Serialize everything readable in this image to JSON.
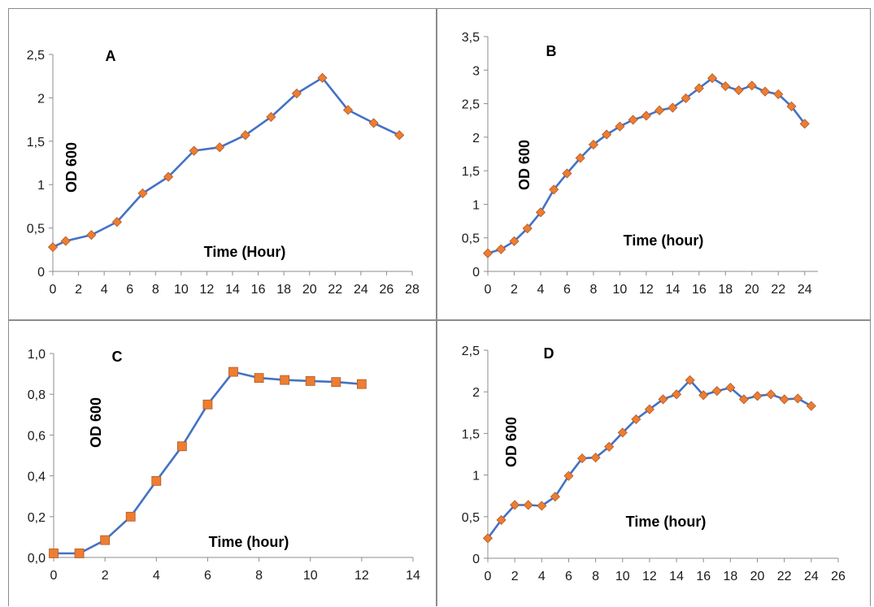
{
  "colors": {
    "series_line": "#4472c4",
    "marker": "#ed7d31",
    "axis": "#8c8c8c"
  },
  "chart_data": [
    {
      "panel": "a",
      "type": "line",
      "title": "A",
      "xlabel": "Time (Hour)",
      "ylabel": "OD 600",
      "marker": "diamond",
      "xlim": [
        0,
        28
      ],
      "ylim": [
        0,
        2.5
      ],
      "xticks": [
        0,
        2,
        4,
        6,
        8,
        10,
        12,
        14,
        16,
        18,
        20,
        22,
        24,
        26,
        28
      ],
      "xtick_labels": [
        "0",
        "2",
        "4",
        "6",
        "8",
        "10",
        "12",
        "14",
        "16",
        "18",
        "20",
        "22",
        "24",
        "26",
        "28"
      ],
      "yticks": [
        0,
        0.5,
        1,
        1.5,
        2,
        2.5
      ],
      "ytick_labels": [
        "0",
        "0,5",
        "1",
        "1,5",
        "2",
        "2,5"
      ],
      "grid": false,
      "x": [
        0,
        1,
        3,
        5,
        7,
        9,
        11,
        13,
        15,
        17,
        19,
        21,
        23,
        25,
        27
      ],
      "y": [
        0.28,
        0.35,
        0.42,
        0.57,
        0.9,
        1.09,
        1.39,
        1.43,
        1.57,
        1.78,
        2.05,
        2.23,
        1.86,
        1.71,
        1.57
      ]
    },
    {
      "panel": "b",
      "type": "line",
      "title": "B",
      "xlabel": "Time (hour)",
      "ylabel": "OD 600",
      "marker": "diamond",
      "xlim": [
        0,
        25
      ],
      "ylim": [
        0,
        3.5
      ],
      "xticks": [
        0,
        2,
        4,
        6,
        8,
        10,
        12,
        14,
        16,
        18,
        20,
        22,
        24
      ],
      "xtick_labels": [
        "0",
        "2",
        "4",
        "6",
        "8",
        "10",
        "12",
        "14",
        "16",
        "18",
        "20",
        "22",
        "24"
      ],
      "yticks": [
        0,
        0.5,
        1,
        1.5,
        2,
        2.5,
        3,
        3.5
      ],
      "ytick_labels": [
        "0",
        "0,5",
        "1",
        "1,5",
        "2",
        "2,5",
        "3",
        "3,5"
      ],
      "grid": false,
      "x": [
        0,
        1,
        2,
        3,
        4,
        5,
        6,
        7,
        8,
        9,
        10,
        11,
        12,
        13,
        14,
        15,
        16,
        17,
        18,
        19,
        20,
        21,
        22,
        23,
        24
      ],
      "y": [
        0.27,
        0.33,
        0.45,
        0.64,
        0.88,
        1.22,
        1.46,
        1.69,
        1.89,
        2.04,
        2.16,
        2.26,
        2.32,
        2.4,
        2.44,
        2.58,
        2.73,
        2.88,
        2.76,
        2.7,
        2.77,
        2.68,
        2.64,
        2.46,
        2.2
      ]
    },
    {
      "panel": "c",
      "type": "line",
      "title": "C",
      "xlabel": "Time (hour)",
      "ylabel": "OD 600",
      "marker": "square",
      "xlim": [
        0,
        14
      ],
      "ylim": [
        0,
        1.0
      ],
      "xticks": [
        0,
        2,
        4,
        6,
        8,
        10,
        12,
        14
      ],
      "xtick_labels": [
        "0",
        "2",
        "4",
        "6",
        "8",
        "10",
        "12",
        "14"
      ],
      "yticks": [
        0,
        0.2,
        0.4,
        0.6,
        0.8,
        1.0
      ],
      "ytick_labels": [
        "0,0",
        "0,2",
        "0,4",
        "0,6",
        "0,8",
        "1,0"
      ],
      "grid": false,
      "x": [
        0,
        1,
        2,
        3,
        4,
        5,
        6,
        7,
        8,
        9,
        10,
        11,
        12
      ],
      "y": [
        0.02,
        0.02,
        0.085,
        0.2,
        0.375,
        0.545,
        0.75,
        0.91,
        0.88,
        0.87,
        0.865,
        0.86,
        0.85
      ]
    },
    {
      "panel": "d",
      "type": "line",
      "title": "D",
      "xlabel": "Time (hour)",
      "ylabel": "OD 600",
      "marker": "diamond",
      "xlim": [
        0,
        26
      ],
      "ylim": [
        0,
        2.5
      ],
      "xticks": [
        0,
        2,
        4,
        6,
        8,
        10,
        12,
        14,
        16,
        18,
        20,
        22,
        24,
        26
      ],
      "xtick_labels": [
        "0",
        "2",
        "4",
        "6",
        "8",
        "10",
        "12",
        "14",
        "16",
        "18",
        "20",
        "22",
        "24",
        "26"
      ],
      "yticks": [
        0,
        0.5,
        1,
        1.5,
        2,
        2.5
      ],
      "ytick_labels": [
        "0",
        "0,5",
        "1",
        "1,5",
        "2",
        "2,5"
      ],
      "grid": false,
      "x": [
        0,
        1,
        2,
        3,
        4,
        5,
        6,
        7,
        8,
        9,
        10,
        11,
        12,
        13,
        14,
        15,
        16,
        17,
        18,
        19,
        20,
        21,
        22,
        23,
        24
      ],
      "y": [
        0.24,
        0.46,
        0.64,
        0.64,
        0.63,
        0.74,
        0.99,
        1.2,
        1.21,
        1.34,
        1.51,
        1.67,
        1.79,
        1.91,
        1.97,
        2.14,
        1.96,
        2.01,
        2.05,
        1.91,
        1.95,
        1.97,
        1.91,
        1.92,
        1.83
      ]
    }
  ]
}
